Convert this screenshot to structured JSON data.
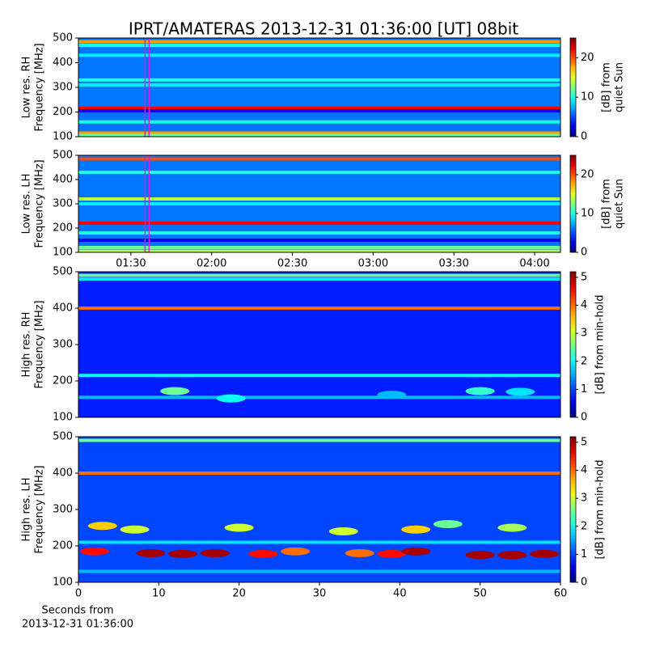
{
  "title": "IPRT/AMATERAS 2013-12-31 01:36:00 [UT]   08bit",
  "chart_data": [
    {
      "type": "spectrogram",
      "cmap": "jet",
      "ylabel_lines": [
        "Low res. RH",
        "Frequency [MHz]"
      ],
      "ylim": [
        100,
        500
      ],
      "yticks": [
        100,
        200,
        300,
        400,
        500
      ],
      "xlim": [
        70.5,
        249.6
      ],
      "clim": [
        0,
        25
      ],
      "cticks": [
        0,
        10,
        20
      ],
      "clabel_lines": [
        "[dB] from",
        "quiet Sun"
      ],
      "marker": 96,
      "marker_color": "#d020e0",
      "background": 6,
      "bands": [
        {
          "y": 485,
          "value": 18
        },
        {
          "y": 470,
          "value": 10
        },
        {
          "y": 430,
          "value": 9
        },
        {
          "y": 330,
          "value": 10
        },
        {
          "y": 310,
          "value": 9
        },
        {
          "y": 215,
          "value": 22
        },
        {
          "y": 205,
          "value": 3
        },
        {
          "y": 160,
          "value": 10
        },
        {
          "y": 115,
          "value": 18
        },
        {
          "y": 105,
          "value": 12
        }
      ]
    },
    {
      "type": "spectrogram",
      "cmap": "jet",
      "ylabel_lines": [
        "Low res. LH",
        "Frequency [MHz]"
      ],
      "ylim": [
        100,
        500
      ],
      "yticks": [
        100,
        200,
        300,
        400,
        500
      ],
      "xlim": [
        70.5,
        249.6
      ],
      "xticks": [
        {
          "value": 90,
          "label": "01:30"
        },
        {
          "value": 120,
          "label": "02:00"
        },
        {
          "value": 150,
          "label": "02:30"
        },
        {
          "value": 180,
          "label": "03:00"
        },
        {
          "value": 210,
          "label": "03:30"
        },
        {
          "value": 240,
          "label": "04:00"
        }
      ],
      "clim": [
        0,
        25
      ],
      "cticks": [
        0,
        10,
        20
      ],
      "clabel_lines": [
        "[dB] from",
        "quiet Sun"
      ],
      "marker": 96,
      "marker_color": "#d020e0",
      "background": 6,
      "bands": [
        {
          "y": 485,
          "value": 20
        },
        {
          "y": 430,
          "value": 10
        },
        {
          "y": 320,
          "value": 14
        },
        {
          "y": 300,
          "value": 9
        },
        {
          "y": 220,
          "value": 22
        },
        {
          "y": 180,
          "value": 10
        },
        {
          "y": 150,
          "value": 3
        },
        {
          "y": 120,
          "value": 12
        },
        {
          "y": 105,
          "value": 14
        }
      ]
    },
    {
      "type": "spectrogram",
      "cmap": "jet",
      "ylabel_lines": [
        "High res. RH",
        "Frequency [MHz]"
      ],
      "ylim": [
        100,
        500
      ],
      "yticks": [
        100,
        200,
        300,
        400,
        500
      ],
      "xlim": [
        0,
        60
      ],
      "clim": [
        0,
        5.2
      ],
      "cticks": [
        0,
        1,
        2,
        3,
        4,
        5
      ],
      "clabel_lines": [
        "[dB] from min-hold"
      ],
      "background": 0.8,
      "bands": [
        {
          "y": 490,
          "value": 2.5
        },
        {
          "y": 480,
          "value": 1.8
        },
        {
          "y": 400,
          "value": 4
        },
        {
          "y": 215,
          "value": 2
        },
        {
          "y": 155,
          "value": 1.6
        }
      ],
      "spots": [
        {
          "x": 12,
          "y": 172,
          "value": 2.5
        },
        {
          "x": 19,
          "y": 152,
          "value": 2
        },
        {
          "x": 39,
          "y": 162,
          "value": 1.6
        },
        {
          "x": 50,
          "y": 172,
          "value": 2.2
        },
        {
          "x": 55,
          "y": 170,
          "value": 1.8
        }
      ]
    },
    {
      "type": "spectrogram",
      "cmap": "jet",
      "ylabel_lines": [
        "High res. LH",
        "Frequency [MHz]"
      ],
      "ylim": [
        100,
        500
      ],
      "yticks": [
        100,
        200,
        300,
        400,
        500
      ],
      "xlim": [
        0,
        60
      ],
      "xticks": [
        0,
        10,
        20,
        30,
        40,
        50,
        60
      ],
      "xlabel_lines": [
        "Seconds from",
        "2013-12-31 01:36:00"
      ],
      "clim": [
        0,
        5.2
      ],
      "cticks": [
        0,
        1,
        2,
        3,
        4,
        5
      ],
      "clabel_lines": [
        "[dB] from min-hold"
      ],
      "background": 1,
      "bands": [
        {
          "y": 490,
          "value": 2.5
        },
        {
          "y": 400,
          "value": 4
        },
        {
          "y": 210,
          "value": 1.8
        },
        {
          "y": 130,
          "value": 1.6
        }
      ],
      "spots": [
        {
          "x": 2,
          "y": 185,
          "value": 4.5
        },
        {
          "x": 9,
          "y": 180,
          "value": 5
        },
        {
          "x": 13,
          "y": 178,
          "value": 5
        },
        {
          "x": 17,
          "y": 180,
          "value": 5
        },
        {
          "x": 23,
          "y": 178,
          "value": 4.5
        },
        {
          "x": 27,
          "y": 185,
          "value": 4
        },
        {
          "x": 35,
          "y": 180,
          "value": 4
        },
        {
          "x": 39,
          "y": 178,
          "value": 4.5
        },
        {
          "x": 42,
          "y": 185,
          "value": 5
        },
        {
          "x": 50,
          "y": 175,
          "value": 5
        },
        {
          "x": 54,
          "y": 175,
          "value": 5
        },
        {
          "x": 58,
          "y": 178,
          "value": 5
        },
        {
          "x": 3,
          "y": 255,
          "value": 3.5
        },
        {
          "x": 7,
          "y": 245,
          "value": 3
        },
        {
          "x": 20,
          "y": 250,
          "value": 3
        },
        {
          "x": 33,
          "y": 240,
          "value": 3
        },
        {
          "x": 42,
          "y": 245,
          "value": 3.5
        },
        {
          "x": 46,
          "y": 260,
          "value": 2.5
        },
        {
          "x": 54,
          "y": 250,
          "value": 2.8
        }
      ]
    }
  ]
}
